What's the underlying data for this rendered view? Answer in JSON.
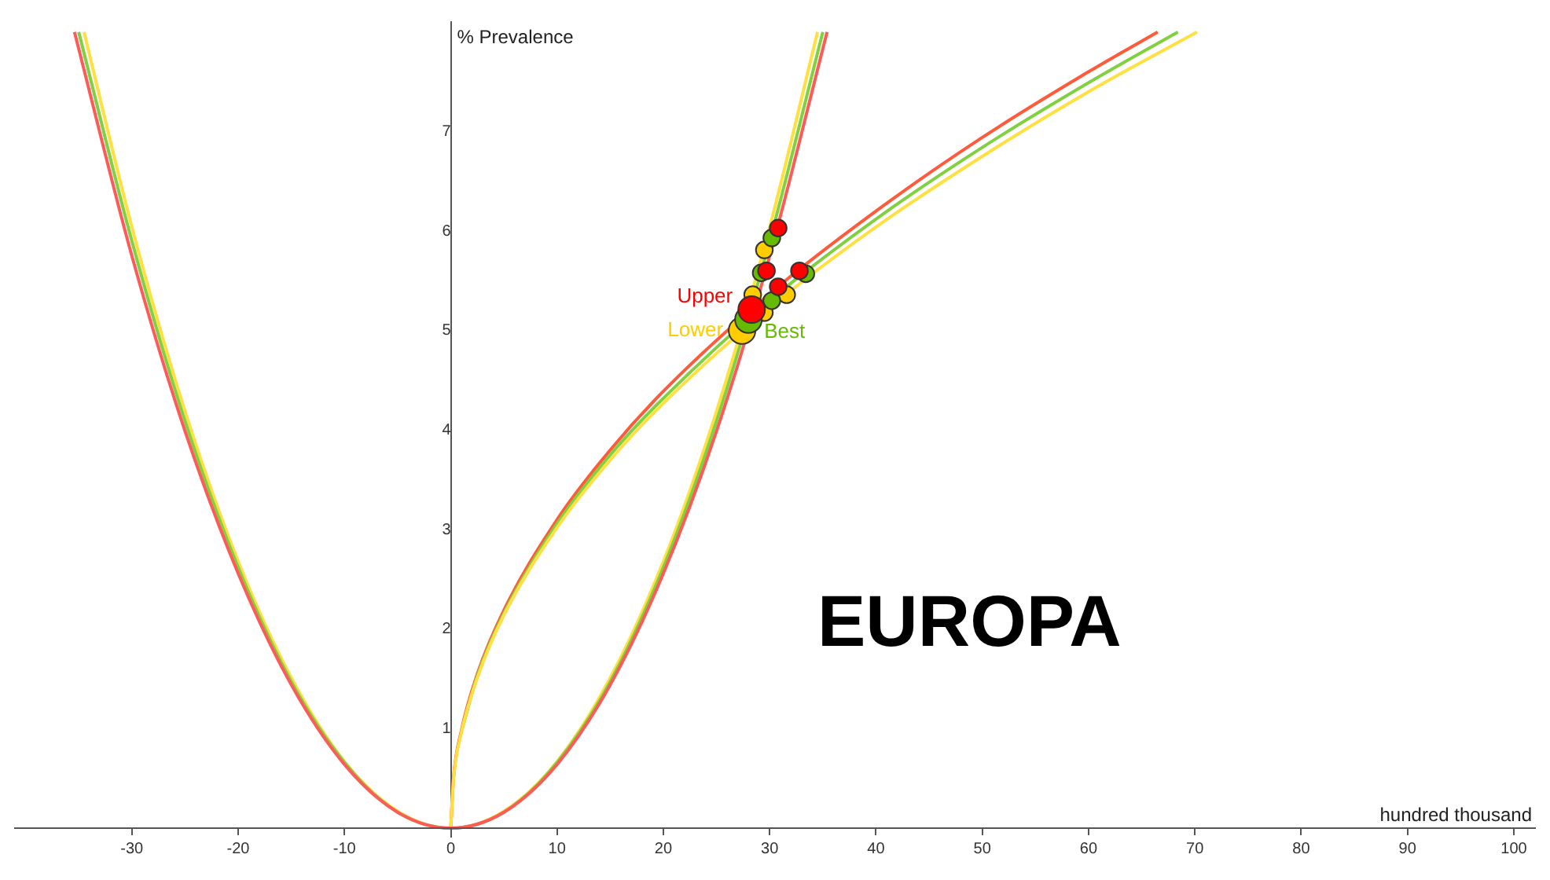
{
  "chart_data": {
    "type": "line",
    "xlabel": "hundred thousand",
    "ylabel": "% Prevalence",
    "annotations": [
      "EUROPA"
    ],
    "xlim": [
      -41,
      102
    ],
    "ylim": [
      -0.3,
      8.1
    ],
    "xticks": [
      -30,
      -20,
      -10,
      0,
      10,
      20,
      30,
      40,
      50,
      60,
      70,
      80,
      90,
      100
    ],
    "yticks": [
      1,
      2,
      3,
      4,
      5,
      6,
      7
    ],
    "legend": false,
    "line_style": "solid",
    "series": [
      {
        "color": "#ff5a5a",
        "x": [
          -35.4,
          -30,
          -25,
          -20,
          -15,
          -10,
          -5,
          0,
          5,
          10,
          15,
          20,
          25,
          30,
          35.4
        ],
        "values": [
          8.0,
          5.75,
          3.99,
          2.56,
          1.44,
          0.64,
          0.16,
          0,
          0.16,
          0.64,
          1.44,
          2.56,
          3.99,
          5.75,
          8.0
        ]
      },
      {
        "color": "#80d040",
        "x": [
          -35,
          -30,
          -25,
          -20,
          -15,
          -10,
          -5,
          0,
          5,
          10,
          15,
          20,
          25,
          30,
          35
        ],
        "values": [
          8.0,
          5.9,
          4.09,
          2.62,
          1.47,
          0.66,
          0.16,
          0,
          0.16,
          0.66,
          1.47,
          2.62,
          4.09,
          5.9,
          8.0
        ]
      },
      {
        "color": "#ffe040",
        "x": [
          -34.5,
          -30,
          -25,
          -20,
          -15,
          -10,
          -5,
          0,
          5,
          10,
          15,
          20,
          25,
          30,
          34.5
        ],
        "values": [
          8.0,
          6.04,
          4.19,
          2.68,
          1.51,
          0.67,
          0.17,
          0,
          0.17,
          0.67,
          1.51,
          2.68,
          4.19,
          6.04,
          8.0
        ]
      },
      {
        "color": "#ffe040",
        "x": [
          0,
          0.25,
          1,
          2.5,
          5,
          10,
          15,
          20,
          30,
          40,
          50,
          60,
          70.2
        ],
        "values": [
          0,
          0.48,
          0.96,
          1.51,
          2.14,
          3.02,
          3.7,
          4.27,
          5.23,
          6.04,
          6.75,
          7.4,
          8.0
        ]
      },
      {
        "color": "#80d040",
        "x": [
          1,
          2.5,
          5,
          10,
          15,
          20,
          30,
          40,
          50,
          60,
          68.4
        ],
        "values": [
          0.97,
          1.53,
          2.16,
          3.06,
          3.75,
          4.32,
          5.3,
          6.12,
          6.84,
          7.49,
          8.0
        ]
      },
      {
        "color": "#ff5a3a",
        "x": [
          0,
          0.25,
          1,
          2.5,
          5,
          10,
          15,
          20,
          30,
          40,
          50,
          60,
          66.5
        ],
        "values": [
          0,
          0.49,
          0.98,
          1.55,
          2.19,
          3.1,
          3.8,
          4.39,
          5.37,
          6.2,
          6.94,
          7.6,
          8.0
        ]
      },
      {
        "type": "bubble",
        "name": "Upper",
        "color": "#ff0000",
        "x": [
          30.8,
          29.7,
          32.8,
          30.8,
          28.3
        ],
        "values": [
          6.03,
          5.6,
          5.6,
          5.44,
          5.21
        ],
        "sizes": [
          0.4,
          0.4,
          0.4,
          0.4,
          1
        ]
      },
      {
        "type": "bubble",
        "name": "Best",
        "color": "#66bb00",
        "x": [
          30.2,
          29.2,
          33.4,
          30.2,
          28.0
        ],
        "values": [
          5.93,
          5.58,
          5.57,
          5.3,
          5.11
        ],
        "sizes": [
          0.4,
          0.4,
          0.4,
          0.4,
          1
        ]
      },
      {
        "type": "bubble",
        "name": "Lower",
        "color": "#ffcc00",
        "x": [
          29.5,
          28.4,
          31.6,
          29.5,
          27.4
        ],
        "values": [
          5.81,
          5.36,
          5.36,
          5.18,
          5.0
        ],
        "sizes": [
          0.4,
          0.4,
          0.4,
          0.4,
          1
        ]
      }
    ]
  }
}
